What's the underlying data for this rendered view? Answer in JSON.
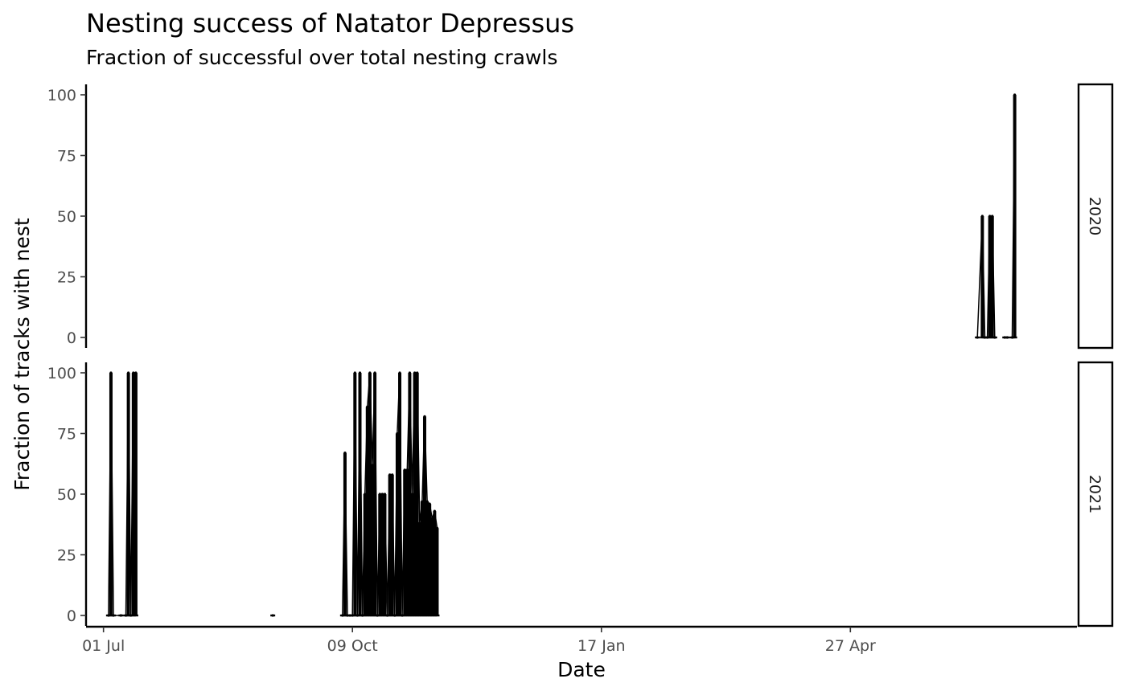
{
  "chart_data": {
    "type": "bar",
    "title": "Nesting success of Natator Depressus",
    "subtitle": "Fraction of successful over total nesting crawls",
    "xlabel": "Date",
    "ylabel": "Fraction of tracks with nest",
    "xlim": [
      "2021-06-24",
      "2022-07-27"
    ],
    "ylim": [
      0,
      100
    ],
    "yticks": [
      0,
      25,
      50,
      75,
      100
    ],
    "xticks": [
      {
        "date": "2021-07-01",
        "label": "01 Jul"
      },
      {
        "date": "2021-10-09",
        "label": "09 Oct"
      },
      {
        "date": "2022-01-17",
        "label": "17 Jan"
      },
      {
        "date": "2022-04-27",
        "label": "27 Apr"
      }
    ],
    "facets": [
      {
        "label": "2020",
        "points": [
          [
            "2022-06-17",
            0
          ],
          [
            "2022-06-19",
            50
          ],
          [
            "2022-06-20",
            0
          ],
          [
            "2022-06-21",
            0
          ],
          [
            "2022-06-22",
            50
          ],
          [
            "2022-06-23",
            50
          ],
          [
            "2022-06-24",
            0
          ],
          [
            "2022-06-28",
            0
          ],
          [
            "2022-06-29",
            0
          ],
          [
            "2022-07-01",
            0
          ],
          [
            "2022-07-02",
            100
          ]
        ]
      },
      {
        "label": "2021",
        "points": [
          [
            "2021-07-03",
            0
          ],
          [
            "2021-07-04",
            100
          ],
          [
            "2021-07-05",
            0
          ],
          [
            "2021-07-08",
            0
          ],
          [
            "2021-07-10",
            0
          ],
          [
            "2021-07-11",
            100
          ],
          [
            "2021-07-12",
            0
          ],
          [
            "2021-07-13",
            100
          ],
          [
            "2021-07-14",
            100
          ],
          [
            "2021-09-07",
            0
          ],
          [
            "2021-10-05",
            0
          ],
          [
            "2021-10-06",
            67
          ],
          [
            "2021-10-07",
            0
          ],
          [
            "2021-10-08",
            0
          ],
          [
            "2021-10-09",
            0
          ],
          [
            "2021-10-10",
            100
          ],
          [
            "2021-10-11",
            0
          ],
          [
            "2021-10-12",
            100
          ],
          [
            "2021-10-13",
            0
          ],
          [
            "2021-10-14",
            50
          ],
          [
            "2021-10-15",
            86
          ],
          [
            "2021-10-16",
            100
          ],
          [
            "2021-10-17",
            62
          ],
          [
            "2021-10-18",
            100
          ],
          [
            "2021-10-19",
            0
          ],
          [
            "2021-10-20",
            50
          ],
          [
            "2021-10-21",
            50
          ],
          [
            "2021-10-22",
            50
          ],
          [
            "2021-10-23",
            0
          ],
          [
            "2021-10-24",
            58
          ],
          [
            "2021-10-25",
            58
          ],
          [
            "2021-10-26",
            0
          ],
          [
            "2021-10-27",
            75
          ],
          [
            "2021-10-28",
            100
          ],
          [
            "2021-10-29",
            0
          ],
          [
            "2021-10-30",
            60
          ],
          [
            "2021-10-31",
            60
          ],
          [
            "2021-11-01",
            100
          ],
          [
            "2021-11-02",
            50
          ],
          [
            "2021-11-03",
            100
          ],
          [
            "2021-11-04",
            100
          ],
          [
            "2021-11-05",
            38
          ],
          [
            "2021-11-06",
            47
          ],
          [
            "2021-11-07",
            82
          ],
          [
            "2021-11-08",
            47
          ],
          [
            "2021-11-09",
            46
          ],
          [
            "2021-11-10",
            40
          ],
          [
            "2021-11-11",
            43
          ],
          [
            "2021-11-12",
            36
          ]
        ]
      }
    ]
  }
}
